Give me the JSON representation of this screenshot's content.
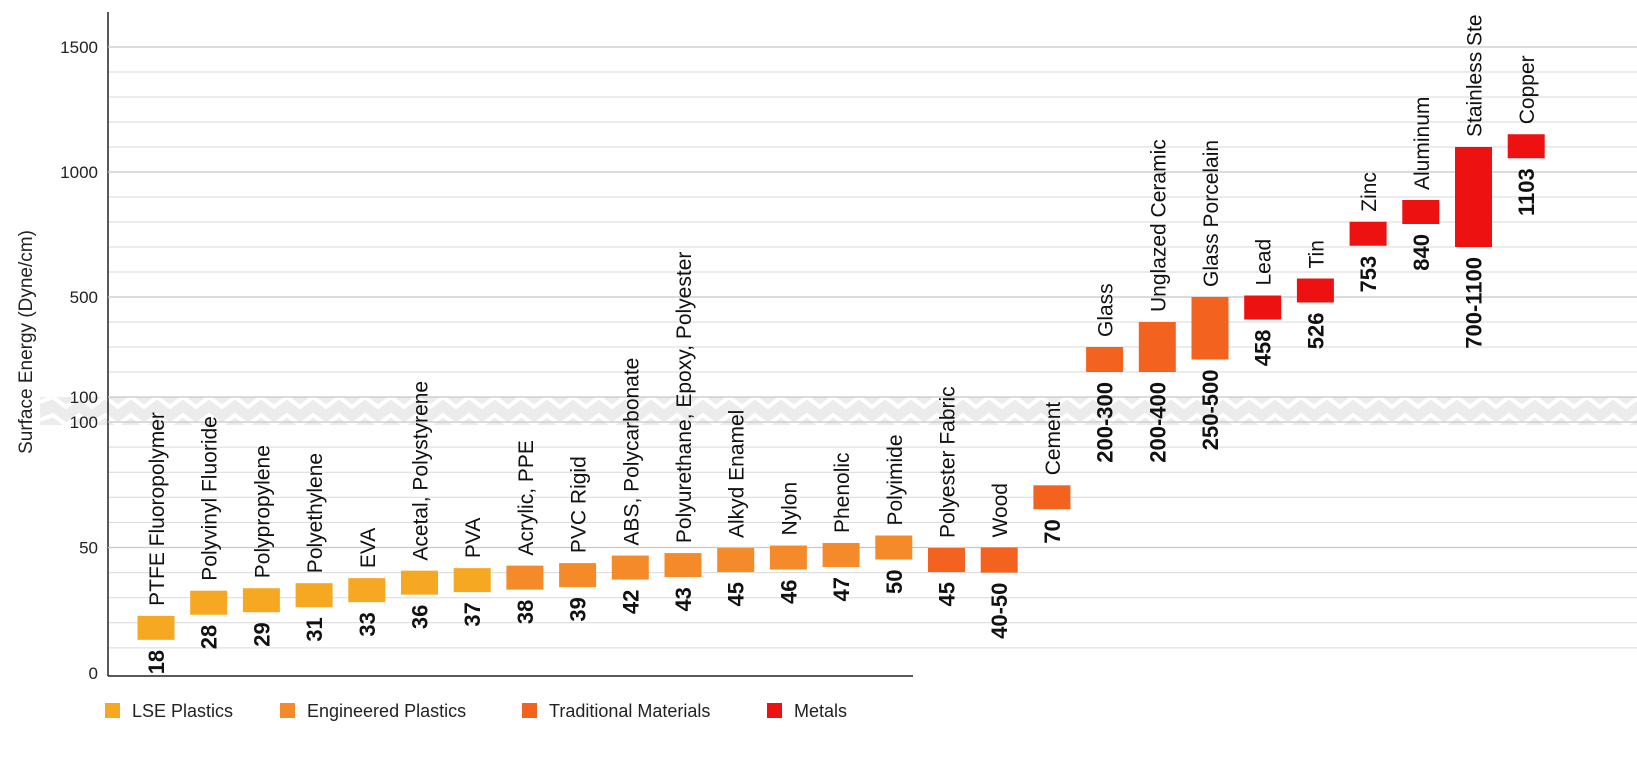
{
  "chart_data": {
    "type": "bar",
    "subtype": "floating-range",
    "ylabel": "Surface Energy (Dyne/cm)",
    "y_axis": {
      "lower_segment": {
        "range": [
          0,
          100
        ],
        "ticks": [
          "0",
          "50",
          "100"
        ]
      },
      "upper_segment": {
        "range": [
          100,
          1500
        ],
        "ticks": [
          "100",
          "500",
          "1000",
          "1500"
        ]
      },
      "break_between": true
    },
    "grid": true,
    "legend_position": "bottom-left",
    "legend": [
      {
        "name": "LSE Plastics",
        "color": "#f7a823"
      },
      {
        "name": "Engineered Plastics",
        "color": "#f58a2a"
      },
      {
        "name": "Traditional Materials",
        "color": "#f4621f"
      },
      {
        "name": "Metals",
        "color": "#ee1111"
      }
    ],
    "categories": [
      "PTFE Fluoropolymer",
      "Polyvinyl Fluoride",
      "Polypropylene",
      "Polyethylene",
      "EVA",
      "Acetal, Polystyrene",
      "PVA",
      "Acrylic, PPE",
      "PVC Rigid",
      "ABS, Polycarbonate",
      "Polyurethane, Epoxy, Polyester",
      "Alkyd Enamel",
      "Nylon",
      "Phenolic",
      "Polyimide",
      "Polyester Fabric",
      "Wood",
      "Cement",
      "Glass",
      "Unglazed Ceramic",
      "Glass Porcelain",
      "Lead",
      "Tin",
      "Zinc",
      "Aluminum",
      "Stainless Ste",
      "Copper"
    ],
    "group": [
      0,
      0,
      0,
      0,
      0,
      0,
      0,
      1,
      1,
      1,
      1,
      1,
      1,
      1,
      1,
      2,
      2,
      2,
      2,
      2,
      2,
      3,
      3,
      3,
      3,
      3,
      3
    ],
    "low": [
      18,
      28,
      29,
      31,
      33,
      36,
      37,
      38,
      39,
      42,
      43,
      45,
      46,
      47,
      50,
      45,
      40,
      70,
      200,
      200,
      250,
      458,
      526,
      753,
      840,
      700,
      1103
    ],
    "high": [
      18,
      28,
      29,
      31,
      33,
      36,
      37,
      38,
      39,
      42,
      43,
      45,
      46,
      47,
      50,
      45,
      50,
      70,
      300,
      400,
      500,
      458,
      526,
      753,
      840,
      1100,
      1103
    ],
    "value_labels": [
      "18",
      "28",
      "29",
      "31",
      "33",
      "36",
      "37",
      "38",
      "39",
      "42",
      "43",
      "45",
      "46",
      "47",
      "50",
      "45",
      "40-50",
      "70",
      "200-300",
      "200-400",
      "250-500",
      "458",
      "526",
      "753",
      "840",
      "700-1100",
      "1103"
    ]
  }
}
